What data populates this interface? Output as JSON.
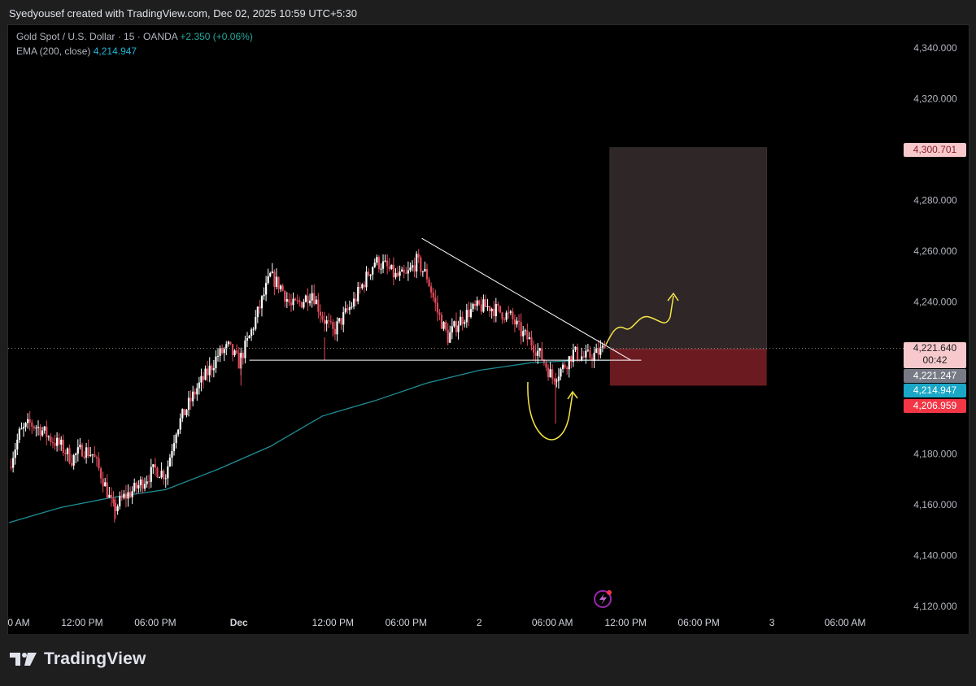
{
  "header": {
    "caption": "Syedyousef created with TradingView.com, Dec 02, 2025 10:59 UTC+5:30"
  },
  "legend": {
    "symbol": "Gold Spot / U.S. Dollar · 15 · OANDA",
    "change": "+2.350 (+0.06%)",
    "ema_label": "EMA (200, close)",
    "ema_value": "4,214.947"
  },
  "price_labels": {
    "target": "4,300.701",
    "last": "4,221.640",
    "countdown": "00:42",
    "entry": "4,221.247",
    "ema": "4,214.947",
    "stop": "4,206.959"
  },
  "brand": {
    "name": "TradingView",
    "logo_icon": "tradingview-logo-icon"
  },
  "colors": {
    "up": "#ffffff",
    "down": "#e14b5a",
    "ema": "#1f8d95",
    "target_zone": "#2e2627",
    "stop_zone": "#6b1a20",
    "annotation": "#f5e64a"
  },
  "chart_data": {
    "type": "candlestick",
    "instrument": "Gold Spot / U.S. Dollar",
    "interval": "15",
    "ylim": [
      4120,
      4345
    ],
    "yticks": [
      4340,
      4320,
      4280,
      4260,
      4240,
      4180,
      4160,
      4140,
      4120
    ],
    "ytick_labels": [
      "4,340.000",
      "4,320.000",
      "4,280.000",
      "4,260.000",
      "4,240.000",
      "4,180.000",
      "4,160.000",
      "4,140.000",
      "4,120.000"
    ],
    "xticks": [
      0,
      7,
      14,
      22,
      31,
      38,
      45,
      52,
      59,
      66,
      73,
      80
    ],
    "xtick_labels": [
      "0 AM",
      "12:00 PM",
      "06:00 PM",
      "Dec",
      "12:00 PM",
      "06:00 PM",
      "2",
      "06:00 AM",
      "12:00 PM",
      "06:00 PM",
      "3",
      "06:00 AM"
    ],
    "close_path": [
      [
        0,
        4175
      ],
      [
        1,
        4188
      ],
      [
        2,
        4192
      ],
      [
        3,
        4190
      ],
      [
        4,
        4186
      ],
      [
        5,
        4183
      ],
      [
        6,
        4178
      ],
      [
        7,
        4182
      ],
      [
        8,
        4180
      ],
      [
        9,
        4170
      ],
      [
        10,
        4158
      ],
      [
        11,
        4163
      ],
      [
        12,
        4166
      ],
      [
        13,
        4170
      ],
      [
        14,
        4174
      ],
      [
        15,
        4172
      ],
      [
        16,
        4190
      ],
      [
        17,
        4198
      ],
      [
        18,
        4206
      ],
      [
        19,
        4212
      ],
      [
        20,
        4219
      ],
      [
        21,
        4222
      ],
      [
        22,
        4216
      ],
      [
        23,
        4226
      ],
      [
        24,
        4238
      ],
      [
        25,
        4250
      ],
      [
        26,
        4246
      ],
      [
        27,
        4238
      ],
      [
        28,
        4240
      ],
      [
        29,
        4244
      ],
      [
        30,
        4234
      ],
      [
        31,
        4228
      ],
      [
        32,
        4234
      ],
      [
        33,
        4240
      ],
      [
        34,
        4248
      ],
      [
        35,
        4256
      ],
      [
        36,
        4254
      ],
      [
        37,
        4250
      ],
      [
        38,
        4250
      ],
      [
        39,
        4256
      ],
      [
        40,
        4250
      ],
      [
        41,
        4236
      ],
      [
        42,
        4226
      ],
      [
        43,
        4232
      ],
      [
        44,
        4236
      ],
      [
        45,
        4238
      ],
      [
        46,
        4238
      ],
      [
        47,
        4236
      ],
      [
        48,
        4234
      ],
      [
        49,
        4228
      ],
      [
        50,
        4224
      ],
      [
        51,
        4218
      ],
      [
        52,
        4210
      ],
      [
        53,
        4214
      ],
      [
        54,
        4220
      ],
      [
        55,
        4218
      ],
      [
        56,
        4219
      ],
      [
        57,
        4221.6
      ]
    ],
    "ema_200": [
      [
        0,
        4153
      ],
      [
        5,
        4159
      ],
      [
        10,
        4163
      ],
      [
        15,
        4166
      ],
      [
        20,
        4174
      ],
      [
        25,
        4183
      ],
      [
        30,
        4195
      ],
      [
        35,
        4201
      ],
      [
        40,
        4208
      ],
      [
        45,
        4213
      ],
      [
        50,
        4216
      ],
      [
        55,
        4217
      ],
      [
        57.5,
        4217
      ]
    ],
    "drawings": {
      "descending_trendline": {
        "from": [
          39.5,
          4265
        ],
        "to": [
          59.5,
          4217
        ]
      },
      "horizontal_support": {
        "from": [
          23,
          4217
        ],
        "to": [
          60.5,
          4217
        ],
        "value": 4217
      },
      "last_price_line": 4221.64,
      "long_position": {
        "x_start": 57.5,
        "x_end": 72.5,
        "entry": 4221.247,
        "target": 4300.701,
        "stop": 4206.959
      },
      "annotations": [
        "U-shaped arrow under liquidity sweep",
        "upward wavy projection arrow"
      ]
    }
  }
}
